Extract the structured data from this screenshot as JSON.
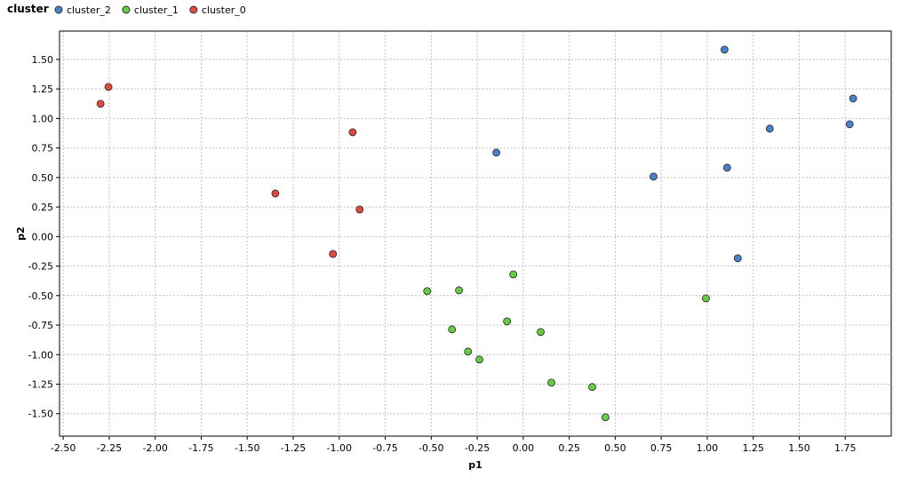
{
  "chart_data": {
    "type": "scatter",
    "legend_title": "cluster",
    "x_label": "p1",
    "y_label": "p2",
    "grid": true,
    "legend": "top-left",
    "xlim": [
      -2.52,
      2.0
    ],
    "ylim": [
      -1.69,
      1.74
    ],
    "xticks": [
      {
        "value": -2.5,
        "label": "-2.50"
      },
      {
        "value": -2.25,
        "label": "-2.25"
      },
      {
        "value": -2.0,
        "label": "-2.00"
      },
      {
        "value": -1.75,
        "label": "-1.75"
      },
      {
        "value": -1.5,
        "label": "-1.50"
      },
      {
        "value": -1.25,
        "label": "-1.25"
      },
      {
        "value": -1.0,
        "label": "-1.00"
      },
      {
        "value": -0.75,
        "label": "-0.75"
      },
      {
        "value": -0.5,
        "label": "-0.50"
      },
      {
        "value": -0.25,
        "label": "-0.25"
      },
      {
        "value": 0,
        "label": "0.00"
      },
      {
        "value": 0.25,
        "label": "0.25"
      },
      {
        "value": 0.5,
        "label": "0.50"
      },
      {
        "value": 0.75,
        "label": "0.75"
      },
      {
        "value": 1.0,
        "label": "1.00"
      },
      {
        "value": 1.25,
        "label": "1.25"
      },
      {
        "value": 1.5,
        "label": "1.50"
      },
      {
        "value": 1.75,
        "label": "1.75"
      }
    ],
    "yticks": [
      {
        "value": 1.5,
        "label": "1.50"
      },
      {
        "value": 1.25,
        "label": "1.25"
      },
      {
        "value": 1.0,
        "label": "1.00"
      },
      {
        "value": 0.75,
        "label": "0.75"
      },
      {
        "value": 0.5,
        "label": "0.50"
      },
      {
        "value": 0.25,
        "label": "0.25"
      },
      {
        "value": 0,
        "label": "0.00"
      },
      {
        "value": -0.25,
        "label": "-0.25"
      },
      {
        "value": -0.5,
        "label": "-0.50"
      },
      {
        "value": -0.75,
        "label": "-0.75"
      },
      {
        "value": -1.0,
        "label": "-1.00"
      },
      {
        "value": -1.25,
        "label": "-1.25"
      },
      {
        "value": -1.5,
        "label": "-1.50"
      }
    ],
    "series": [
      {
        "name": "cluster_2",
        "color": "#4a7fcb",
        "x": [
          1.094,
          1.793,
          1.774,
          1.34,
          1.108,
          0.708,
          -0.146,
          1.166
        ],
        "y": [
          1.583,
          1.169,
          0.951,
          0.914,
          0.583,
          0.508,
          0.711,
          -0.184
        ]
      },
      {
        "name": "cluster_1",
        "color": "#66cc44",
        "x": [
          -0.054,
          -0.522,
          -0.349,
          0.993,
          -0.088,
          0.095,
          -0.387,
          -0.3,
          -0.238,
          0.153,
          0.375,
          0.447
        ],
        "y": [
          -0.32,
          -0.462,
          -0.455,
          -0.523,
          -0.718,
          -0.808,
          -0.786,
          -0.974,
          -1.041,
          -1.237,
          -1.274,
          -1.53
        ]
      },
      {
        "name": "cluster_0",
        "color": "#e04a3f",
        "x": [
          -2.254,
          -2.297,
          -0.927,
          -1.347,
          -0.889,
          -1.034
        ],
        "y": [
          1.267,
          1.124,
          0.883,
          0.365,
          0.229,
          -0.147
        ]
      }
    ]
  }
}
